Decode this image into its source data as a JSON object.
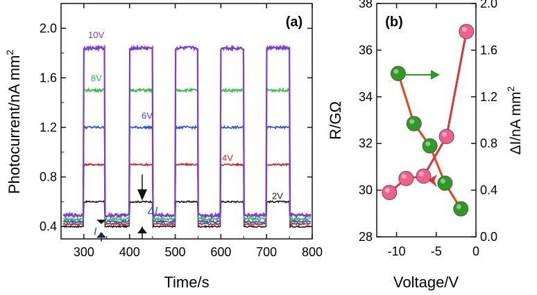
{
  "chart_data": [
    {
      "panel_label": "(a)",
      "type": "line",
      "xlabel": "Time/s",
      "ylabel": "Photocurrent/nA mm",
      "ylabel_sup": "2",
      "xlim": [
        250,
        800
      ],
      "ylim": [
        0.3,
        2.2
      ],
      "xticks": [
        300,
        400,
        500,
        600,
        700,
        800
      ],
      "yticks": [
        0.4,
        0.8,
        1.2,
        1.6,
        2.0
      ],
      "xtick_labels": [
        "300",
        "400",
        "500",
        "600",
        "700",
        "800"
      ],
      "ytick_labels": [
        "0.4",
        "0.8",
        "1.2",
        "1.6",
        "2.0"
      ],
      "on_intervals": [
        [
          300,
          345
        ],
        [
          400,
          450
        ],
        [
          500,
          550
        ],
        [
          600,
          650
        ],
        [
          700,
          750
        ]
      ],
      "series": [
        {
          "name": "2V",
          "color": "#1a1a1a",
          "off_level": 0.4,
          "on_level": 0.6
        },
        {
          "name": "4V",
          "color": "#cc2222",
          "off_level": 0.42,
          "on_level": 0.9
        },
        {
          "name": "6V",
          "color": "#1f4fe0",
          "off_level": 0.44,
          "on_level": 1.2
        },
        {
          "name": "8V",
          "color": "#2fbf3a",
          "off_level": 0.46,
          "on_level": 1.5
        },
        {
          "name": "10V",
          "color": "#7a3ae0",
          "off_level": 0.49,
          "on_level": 1.84
        }
      ],
      "annotations": {
        "delta_label": "ΔI",
        "i0_label": "I",
        "i0_sub": "0"
      }
    },
    {
      "panel_label": "(b)",
      "type": "scatter",
      "xlabel": "Voltage/V",
      "ylabel_left": "R/GΩ",
      "ylabel_right": "ΔI/nA mm",
      "ylabel_right_sup": "2",
      "xlim": [
        -12.5,
        0
      ],
      "ylim_left": [
        28,
        38
      ],
      "ylim_right": [
        0.0,
        2.0
      ],
      "xticks": [
        -10,
        -5,
        0
      ],
      "xtick_labels": [
        "-10",
        "-5",
        "0"
      ],
      "yticks_left": [
        28,
        30,
        32,
        34,
        36,
        38
      ],
      "ytick_labels_left": [
        "28",
        "30",
        "32",
        "34",
        "36",
        "38"
      ],
      "yticks_right": [
        0.0,
        0.4,
        0.8,
        1.2,
        1.6,
        2.0
      ],
      "ytick_labels_right": [
        "0.0",
        "0.4",
        "0.8",
        "1.2",
        "1.6",
        "2.0"
      ],
      "series": [
        {
          "name": "R",
          "axis": "left",
          "color": "#f0608a",
          "line_color": "#e03030",
          "x": [
            -10.9,
            -8.8,
            -6.6,
            -3.7,
            -1.2
          ],
          "y": [
            29.9,
            30.5,
            30.6,
            32.3,
            36.8
          ]
        },
        {
          "name": "ΔI",
          "axis": "right",
          "color": "#2e9a22",
          "line_color": "#f04010",
          "x": [
            -9.8,
            -7.8,
            -5.8,
            -3.9,
            -1.9
          ],
          "y": [
            1.4,
            0.97,
            0.78,
            0.46,
            0.24
          ]
        }
      ]
    }
  ]
}
